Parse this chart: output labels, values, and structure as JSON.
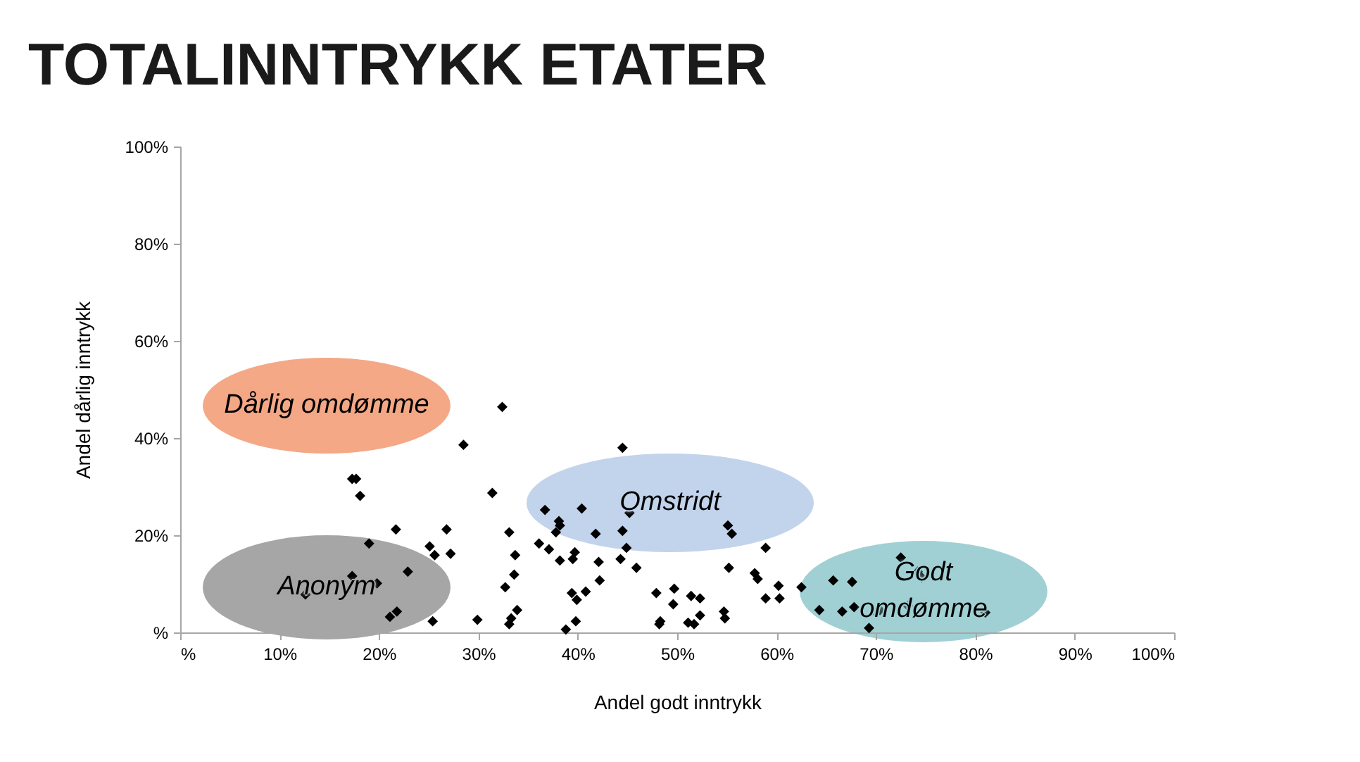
{
  "chart_data": {
    "type": "scatter",
    "title": "TOTALINNTRYKK ETATER",
    "xlabel": "Andel godt inntrykk",
    "ylabel": "Andel dårlig inntrykk",
    "xlim": [
      0,
      100
    ],
    "ylim": [
      0,
      100
    ],
    "xticks": [
      {
        "value": 0,
        "label": "%"
      },
      {
        "value": 10,
        "label": "10%"
      },
      {
        "value": 20,
        "label": "20%"
      },
      {
        "value": 30,
        "label": "30%"
      },
      {
        "value": 40,
        "label": "40%"
      },
      {
        "value": 50,
        "label": "50%"
      },
      {
        "value": 60,
        "label": "60%"
      },
      {
        "value": 70,
        "label": "70%"
      },
      {
        "value": 80,
        "label": "80%"
      },
      {
        "value": 90,
        "label": "90%"
      },
      {
        "value": 100,
        "label": "100%"
      }
    ],
    "yticks": [
      {
        "value": 0,
        "label": "%"
      },
      {
        "value": 20,
        "label": "20%"
      },
      {
        "value": 40,
        "label": "40%"
      },
      {
        "value": 60,
        "label": "60%"
      },
      {
        "value": 80,
        "label": "80%"
      },
      {
        "value": 100,
        "label": "100%"
      }
    ],
    "x": [
      12.6,
      17.3,
      17.7,
      18.1,
      19.0,
      17.3,
      19.8,
      21.1,
      21.8,
      21.7,
      22.9,
      25.1,
      25.6,
      25.4,
      26.8,
      27.2,
      29.9,
      28.5,
      31.4,
      32.4,
      33.1,
      33.7,
      33.6,
      32.7,
      33.9,
      33.1,
      33.3,
      36.1,
      36.7,
      37.1,
      38.1,
      38.2,
      37.8,
      38.2,
      39.5,
      39.7,
      38.8,
      39.4,
      39.9,
      39.8,
      40.8,
      40.4,
      41.8,
      42.1,
      42.2,
      44.5,
      44.5,
      44.3,
      44.9,
      45.2,
      45.9,
      47.9,
      48.3,
      48.2,
      49.7,
      49.6,
      51.4,
      52.3,
      51.1,
      52.3,
      51.7,
      54.7,
      54.8,
      55.1,
      55.5,
      55.2,
      57.8,
      58.1,
      58.9,
      60.2,
      58.9,
      60.3,
      62.5,
      64.3,
      65.7,
      67.6,
      66.6,
      67.8,
      69.3,
      70.0,
      70.4,
      72.5,
      74.2,
      74.6,
      73.2,
      81.0
    ],
    "values": [
      7.8,
      31.6,
      31.6,
      28.1,
      18.3,
      11.6,
      10.1,
      3.2,
      4.3,
      21.2,
      12.5,
      17.7,
      15.9,
      2.3,
      21.2,
      16.2,
      2.6,
      38.6,
      28.7,
      46.4,
      20.6,
      15.9,
      11.9,
      9.3,
      4.6,
      1.7,
      2.9,
      18.3,
      25.2,
      17.1,
      22.9,
      22.0,
      20.6,
      14.8,
      15.1,
      16.5,
      0.6,
      8.1,
      6.7,
      2.3,
      8.4,
      25.5,
      20.3,
      14.5,
      10.7,
      38.0,
      20.9,
      15.1,
      17.4,
      24.6,
      13.3,
      8.1,
      2.3,
      1.7,
      9.0,
      5.8,
      7.5,
      7.0,
      2.0,
      3.5,
      1.7,
      4.3,
      2.9,
      22.0,
      20.3,
      13.3,
      12.2,
      11.0,
      17.4,
      9.6,
      7.0,
      7.0,
      9.3,
      4.6,
      10.7,
      10.4,
      4.3,
      5.2,
      0.9,
      4.1,
      4.6,
      15.4,
      12.5,
      11.3,
      5.5,
      4.1
    ],
    "color": "#000000",
    "marker": "diamond",
    "grid": false,
    "legend": false,
    "annotations": [
      "Dårlig omdømme",
      "Omstridt",
      "Anonym",
      "Godt\nomdømme"
    ]
  }
}
